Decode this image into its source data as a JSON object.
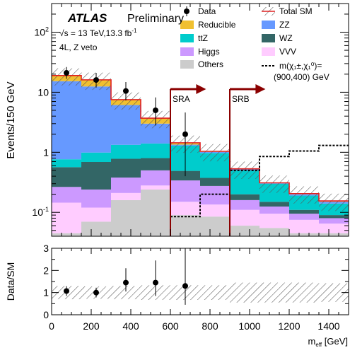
{
  "chart_data": {
    "type": "bar",
    "experiment": "ATLAS",
    "status": "Preliminary",
    "energy_lumi": "√s = 13 TeV,13.3 fb",
    "lumi_exp": "-1",
    "region": "4L, Z veto",
    "ylabel": "Events/150 GeV",
    "ratio_ylabel": "Data/SM",
    "xlabel_base": "m",
    "xlabel_sub": "eff",
    "xlabel_unit": " [GeV]",
    "xlim": [
      0,
      1500
    ],
    "ylim": [
      0.04,
      300
    ],
    "yscale": "log",
    "ratio_ylim": [
      0,
      3
    ],
    "x_ticks": [
      "0",
      "200",
      "400",
      "600",
      "800",
      "1000",
      "1200",
      "1400"
    ],
    "x_tick_values": [
      0,
      200,
      400,
      600,
      800,
      1000,
      1200,
      1400
    ],
    "y_ticks": [
      {
        "value": 100,
        "base": "10",
        "exp": "2"
      },
      {
        "value": 10,
        "base": "10",
        "exp": ""
      },
      {
        "value": 1,
        "base": "1",
        "exp": ""
      },
      {
        "value": 0.1,
        "base": "10",
        "exp": "-1"
      }
    ],
    "ratio_ticks": [
      "0",
      "1",
      "2",
      "3"
    ],
    "ratio_tick_values": [
      0,
      1,
      2,
      3
    ],
    "bin_edges": [
      0,
      150,
      300,
      450,
      600,
      750,
      900,
      1050,
      1200,
      1350,
      1500
    ],
    "stack": [
      {
        "name": "Others",
        "color": "#cccccc",
        "values": [
          0.045,
          0.07,
          0.16,
          0.24,
          0.09,
          0.085,
          0.06,
          0.055,
          0.045,
          0.045
        ]
      },
      {
        "name": "VVV",
        "color": "#ffccff",
        "values": [
          0.1,
          0.05,
          0.05,
          0.04,
          0.06,
          0.05,
          0.05,
          0.04,
          0.03,
          0.02
        ]
      },
      {
        "name": "Higgs",
        "color": "#cc99ff",
        "values": [
          0.12,
          0.12,
          0.17,
          0.22,
          0.19,
          0.14,
          0.05,
          0.03,
          0.02,
          0.015
        ]
      },
      {
        "name": "WZ",
        "color": "#336666",
        "values": [
          0.3,
          0.45,
          0.4,
          0.3,
          0.15,
          0.1,
          0.04,
          0.025,
          0.015,
          0.01
        ]
      },
      {
        "name": "ttZ",
        "color": "#00cccc",
        "values": [
          0.2,
          0.3,
          0.55,
          0.6,
          0.8,
          0.6,
          0.3,
          0.15,
          0.08,
          0.05
        ]
      },
      {
        "name": "ZZ",
        "color": "#6699ff",
        "values": [
          14.5,
          11.5,
          4.8,
          1.6,
          0.05,
          0.04,
          0.02,
          0.01,
          0.01,
          0.01
        ]
      },
      {
        "name": "Reducible",
        "color": "#f0c030",
        "values": [
          3.7,
          3.6,
          1.4,
          0.7,
          0.1,
          0.03,
          0.01,
          0.005,
          0.005,
          0.005
        ]
      }
    ],
    "total_sm": [
      18.96,
      16.09,
      7.53,
      3.7,
      1.44,
      1.04,
      0.53,
      0.31,
      0.205,
      0.155
    ],
    "total_sm_err_frac": 0.32,
    "signal": {
      "values": [
        0.0,
        0.0,
        0.0,
        0.0,
        0.0,
        0.0,
        0.5,
        0.85,
        1.05,
        1.3
      ],
      "dashed_from_bin": 4,
      "low_line": [
        0.05,
        0.05,
        0.05,
        0.05,
        0.085,
        0.2,
        0.5,
        0.85,
        1.05,
        1.3
      ]
    },
    "data": {
      "x": [
        75,
        225,
        375,
        525,
        675
      ],
      "y": [
        21,
        16,
        10.5,
        5,
        2
      ],
      "err_lo": [
        4.3,
        4.0,
        3.2,
        2.2,
        1.6
      ],
      "err_hi": [
        5.3,
        5.0,
        4.3,
        3.2,
        2.6
      ]
    },
    "ratio": {
      "x": [
        75,
        225,
        375,
        525,
        675
      ],
      "y": [
        1.07,
        1.0,
        1.45,
        1.45,
        1.3
      ],
      "err_lo": [
        0.22,
        0.22,
        0.4,
        0.6,
        0.85
      ],
      "err_hi": [
        0.22,
        0.22,
        0.65,
        1.0,
        2.2
      ],
      "band_frac": [
        0.3,
        0.28,
        0.3,
        0.33,
        0.33,
        0.33,
        0.45,
        0.45,
        0.45,
        0.42
      ]
    },
    "regions": [
      {
        "label": "SRA",
        "x": 600,
        "arrow_to": 780,
        "line_top": 5.0
      },
      {
        "label": "SRB",
        "x": 900,
        "arrow_to": 1080,
        "line_top": 5.0
      }
    ],
    "legend": [
      {
        "label": "Data",
        "kind": "marker",
        "color": "#000000"
      },
      {
        "label": "Total SM",
        "kind": "band",
        "color": "#e02020"
      },
      {
        "label": "Reducible",
        "kind": "fill",
        "color": "#f0c030"
      },
      {
        "label": "ZZ",
        "kind": "fill",
        "color": "#6699ff"
      },
      {
        "label": "ttZ",
        "kind": "fill",
        "color": "#00cccc"
      },
      {
        "label": "WZ",
        "kind": "fill",
        "color": "#336666"
      },
      {
        "label": "Higgs",
        "kind": "fill",
        "color": "#cc99ff"
      },
      {
        "label": "VVV",
        "kind": "fill",
        "color": "#ffccff"
      },
      {
        "label": "Others",
        "kind": "fill",
        "color": "#cccccc"
      }
    ],
    "signal_legend": {
      "line1": "m(χ₁±,χ₁⁰)=",
      "line2": "(900,400) GeV"
    },
    "colors": {
      "total_line": "#e02020",
      "region_line": "#8b0000",
      "hatch": "#555555"
    }
  }
}
